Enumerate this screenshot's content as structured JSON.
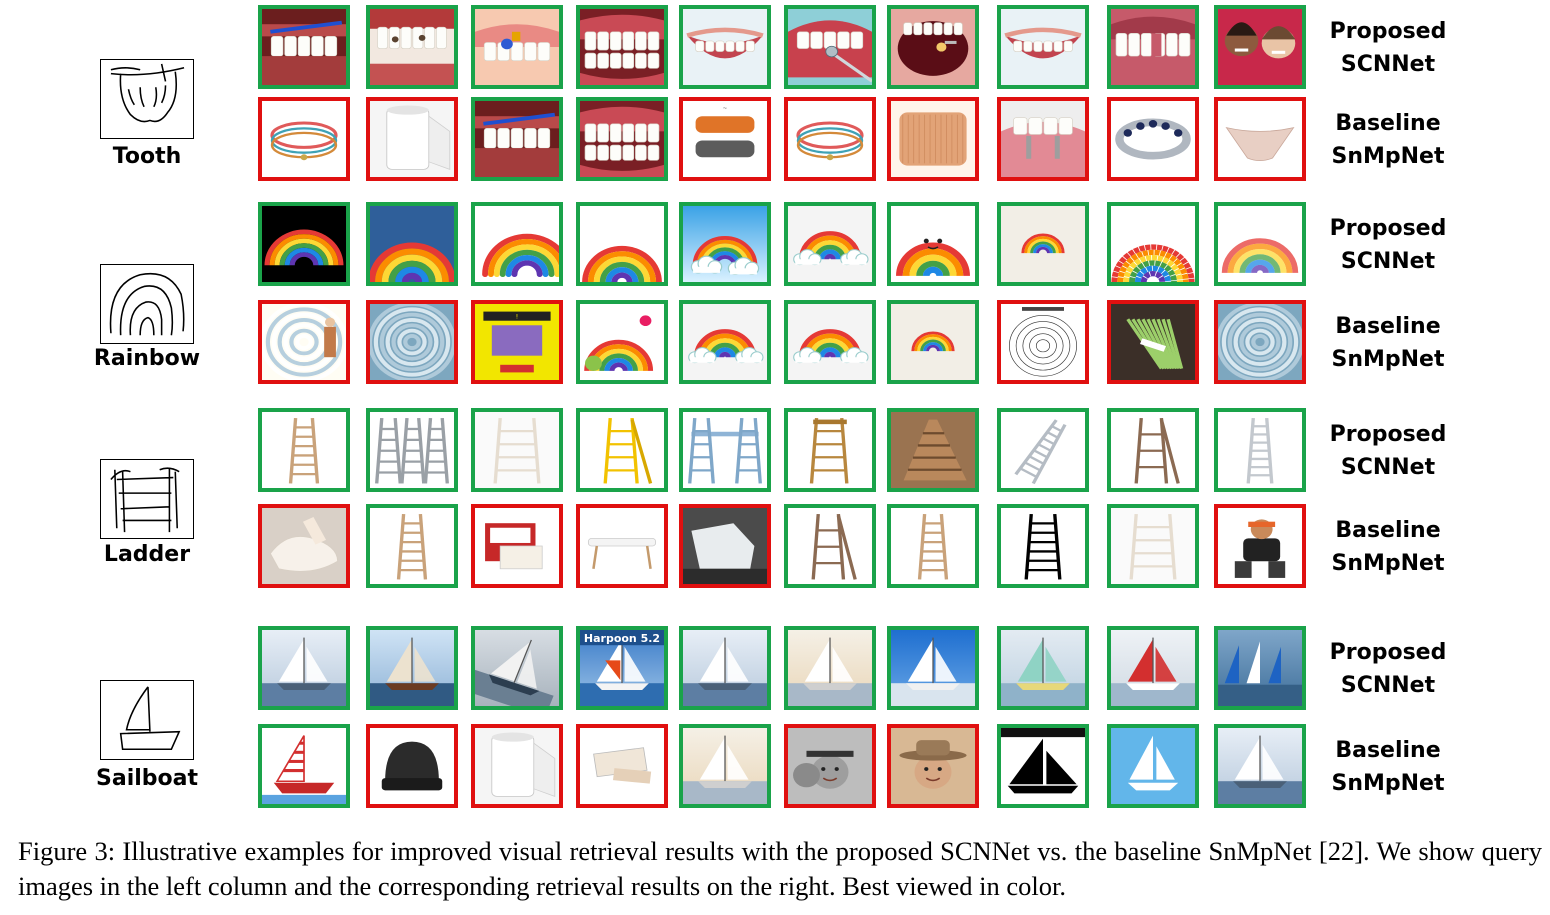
{
  "figure": {
    "colors": {
      "correct": "#1aa34a",
      "incorrect": "#e01010"
    },
    "queries": [
      {
        "label": "Tooth",
        "sketch_icon": "tooth-sketch-icon",
        "proposed": {
          "method_line1": "Proposed",
          "method_line2": "SCNNet",
          "results": [
            {
              "icon": "teeth-brush-icon",
              "correct": true
            },
            {
              "icon": "decayed-teeth-icon",
              "correct": true
            },
            {
              "icon": "child-teeth-icon",
              "correct": true
            },
            {
              "icon": "teeth-closeup-icon",
              "correct": true
            },
            {
              "icon": "smile-icon",
              "correct": true
            },
            {
              "icon": "dental-mirror-icon",
              "correct": true
            },
            {
              "icon": "open-mouth-icon",
              "correct": true
            },
            {
              "icon": "smile-icon",
              "correct": true
            },
            {
              "icon": "missing-tooth-icon",
              "correct": true
            },
            {
              "icon": "women-smiling-icon",
              "correct": true
            }
          ]
        },
        "baseline": {
          "method_line1": "Baseline",
          "method_line2": "SnMpNet",
          "results": [
            {
              "icon": "bracelet-icon",
              "correct": false
            },
            {
              "icon": "bandage-roll-icon",
              "correct": false
            },
            {
              "icon": "teeth-brush-icon",
              "correct": true
            },
            {
              "icon": "teeth-closeup-icon",
              "correct": true
            },
            {
              "icon": "paracord-bracelet-icon",
              "correct": false
            },
            {
              "icon": "bracelet-icon",
              "correct": false
            },
            {
              "icon": "bandage-wrap-icon",
              "correct": false
            },
            {
              "icon": "dental-implant-icon",
              "correct": false
            },
            {
              "icon": "jeweled-bracelet-icon",
              "correct": false
            },
            {
              "icon": "underwear-icon",
              "correct": false
            }
          ]
        }
      },
      {
        "label": "Rainbow",
        "sketch_icon": "rainbow-sketch-icon",
        "proposed": {
          "method_line1": "Proposed",
          "method_line2": "SCNNet",
          "results": [
            {
              "icon": "rainbow-dark-icon",
              "correct": true
            },
            {
              "icon": "rainbow-painted-icon",
              "correct": true
            },
            {
              "icon": "rainbow-brush-icon",
              "correct": true
            },
            {
              "icon": "rainbow-icon",
              "correct": true
            },
            {
              "icon": "rainbow-sky-icon",
              "correct": true
            },
            {
              "icon": "rainbow-clouds-icon",
              "correct": true
            },
            {
              "icon": "rainbow-face-icon",
              "correct": true
            },
            {
              "icon": "rainbow-small-icon",
              "correct": true
            },
            {
              "icon": "rainbow-pixel-icon",
              "correct": true
            },
            {
              "icon": "rainbow-watercolor-icon",
              "correct": true
            }
          ]
        },
        "baseline": {
          "method_line1": "Baseline",
          "method_line2": "SnMpNet",
          "results": [
            {
              "icon": "hurricane-cartoon-icon",
              "correct": false
            },
            {
              "icon": "hurricane-icon",
              "correct": false
            },
            {
              "icon": "warning-poster-icon",
              "correct": false
            },
            {
              "icon": "rainbow-cartoon-icon",
              "correct": true
            },
            {
              "icon": "rainbow-clouds-icon",
              "correct": true
            },
            {
              "icon": "rainbow-clouds-icon",
              "correct": true
            },
            {
              "icon": "rainbow-small-icon",
              "correct": true
            },
            {
              "icon": "concentric-circles-icon",
              "correct": false
            },
            {
              "icon": "asparagus-icon",
              "correct": false
            },
            {
              "icon": "hurricane-icon",
              "correct": false
            }
          ]
        }
      },
      {
        "label": "Ladder",
        "sketch_icon": "ladder-sketch-icon",
        "proposed": {
          "method_line1": "Proposed",
          "method_line2": "SCNNet",
          "results": [
            {
              "icon": "wooden-ladder-icon",
              "correct": true
            },
            {
              "icon": "step-ladders-icon",
              "correct": true
            },
            {
              "icon": "ladder-shelf-icon",
              "correct": true
            },
            {
              "icon": "yellow-stepladder-icon",
              "correct": true
            },
            {
              "icon": "scaffold-ladder-icon",
              "correct": true
            },
            {
              "icon": "wooden-stepladder-icon",
              "correct": true
            },
            {
              "icon": "ladder-rack-icon",
              "correct": true
            },
            {
              "icon": "straight-ladder-icon",
              "correct": true
            },
            {
              "icon": "step-stool-icon",
              "correct": true
            },
            {
              "icon": "aluminum-ladder-icon",
              "correct": true
            }
          ]
        },
        "baseline": {
          "method_line1": "Baseline",
          "method_line2": "SnMpNet",
          "results": [
            {
              "icon": "bandaged-foot-icon",
              "correct": false
            },
            {
              "icon": "wooden-ladder-icon",
              "correct": true
            },
            {
              "icon": "first-aid-kit-icon",
              "correct": false
            },
            {
              "icon": "bench-icon",
              "correct": false
            },
            {
              "icon": "leg-cast-icon",
              "correct": false
            },
            {
              "icon": "step-stool-icon",
              "correct": true
            },
            {
              "icon": "wooden-ladder-icon",
              "correct": true
            },
            {
              "icon": "black-ladder-icon",
              "correct": true
            },
            {
              "icon": "ladder-shelf-icon",
              "correct": true
            },
            {
              "icon": "wrestler-icon",
              "correct": false
            }
          ]
        }
      },
      {
        "label": "Sailboat",
        "sketch_icon": "sailboat-sketch-icon",
        "proposed": {
          "method_line1": "Proposed",
          "method_line2": "SCNNet",
          "results": [
            {
              "icon": "sailboat-icon",
              "correct": true
            },
            {
              "icon": "schooner-icon",
              "correct": true
            },
            {
              "icon": "heeling-sailboat-icon",
              "correct": true
            },
            {
              "icon": "sailboat-poster-icon",
              "correct": true,
              "text": "Harpoon 5.2"
            },
            {
              "icon": "sailboat-icon",
              "correct": true
            },
            {
              "icon": "sailboat-sunset-icon",
              "correct": true
            },
            {
              "icon": "sailboat-blue-icon",
              "correct": true
            },
            {
              "icon": "dinghy-icon",
              "correct": true
            },
            {
              "icon": "red-sail-boats-icon",
              "correct": true
            },
            {
              "icon": "regatta-icon",
              "correct": true
            }
          ]
        },
        "baseline": {
          "method_line1": "Baseline",
          "method_line2": "SnMpNet",
          "results": [
            {
              "icon": "toy-sailboat-icon",
              "correct": true
            },
            {
              "icon": "beanie-hat-icon",
              "correct": false
            },
            {
              "icon": "bandage-roll-icon",
              "correct": false
            },
            {
              "icon": "medical-packet-icon",
              "correct": false
            },
            {
              "icon": "sailboat-sunset-icon",
              "correct": true
            },
            {
              "icon": "two-men-icon",
              "correct": false
            },
            {
              "icon": "cowboy-hat-man-icon",
              "correct": false
            },
            {
              "icon": "sailboat-silhouette-icon",
              "correct": true
            },
            {
              "icon": "sailboat-clipart-icon",
              "correct": true
            },
            {
              "icon": "sailboat-icon",
              "correct": true
            }
          ]
        }
      }
    ]
  },
  "caption": {
    "text": "Figure 3: Illustrative examples for improved visual retrieval results with the proposed SCNNet vs. the baseline SnMpNet [22]. We show query images in the left column and the corresponding retrieval results on the right. Best viewed in color."
  }
}
